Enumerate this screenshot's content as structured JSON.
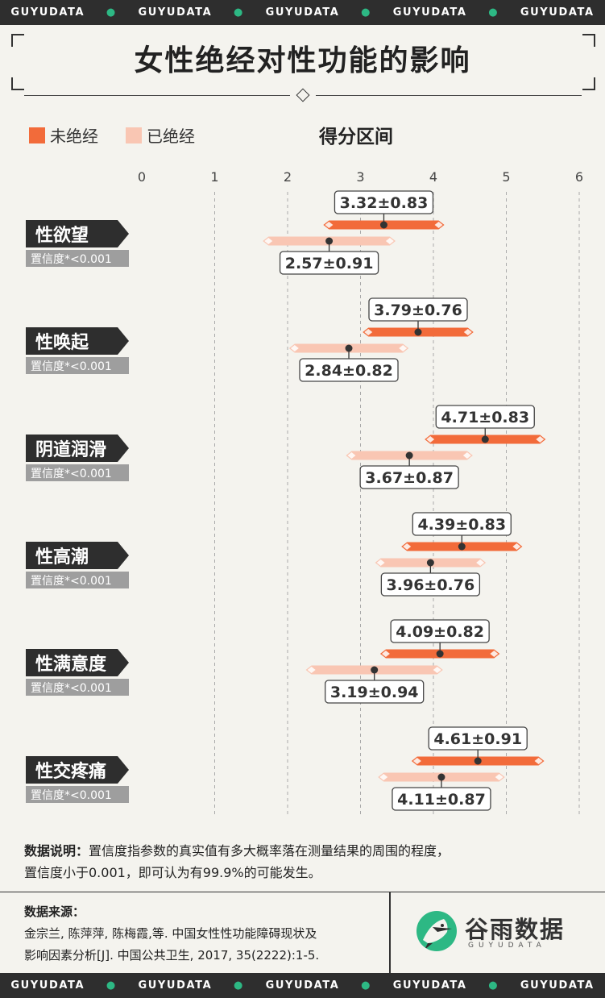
{
  "banner": [
    "GUYUDATA",
    "GUYUDATA",
    "GUYUDATA",
    "GUYUDATA",
    "GUYUDATA"
  ],
  "title": "女性绝经对性功能的影响",
  "legend": {
    "pre": "未绝经",
    "post": "已绝经"
  },
  "chart_header": "得分区间",
  "colors": {
    "pre": "#f26b3a",
    "post": "#f9c6b3",
    "accent": "#2db884",
    "dark": "#2e2e2e",
    "tag": "#9e9e9e"
  },
  "chart_data": {
    "type": "interval",
    "xticks": [
      0,
      1,
      2,
      3,
      4,
      5,
      6
    ],
    "xlim": [
      0,
      6
    ],
    "series": [
      {
        "name": "未绝经",
        "color": "#f26b3a"
      },
      {
        "name": "已绝经",
        "color": "#f9c6b3"
      }
    ],
    "categories": [
      {
        "name": "性欲望",
        "conf": "置信度*<0.001",
        "pre": {
          "mean": 3.32,
          "sd": 0.83,
          "label": "3.32±0.83"
        },
        "post": {
          "mean": 2.57,
          "sd": 0.91,
          "label": "2.57±0.91"
        }
      },
      {
        "name": "性唤起",
        "conf": "置信度*<0.001",
        "pre": {
          "mean": 3.79,
          "sd": 0.76,
          "label": "3.79±0.76"
        },
        "post": {
          "mean": 2.84,
          "sd": 0.82,
          "label": "2.84±0.82"
        }
      },
      {
        "name": "阴道润滑",
        "conf": "置信度*<0.001",
        "pre": {
          "mean": 4.71,
          "sd": 0.83,
          "label": "4.71±0.83"
        },
        "post": {
          "mean": 3.67,
          "sd": 0.87,
          "label": "3.67±0.87"
        }
      },
      {
        "name": "性高潮",
        "conf": "置信度*<0.001",
        "pre": {
          "mean": 4.39,
          "sd": 0.83,
          "label": "4.39±0.83"
        },
        "post": {
          "mean": 3.96,
          "sd": 0.76,
          "label": "3.96±0.76"
        }
      },
      {
        "name": "性满意度",
        "conf": "置信度*<0.001",
        "pre": {
          "mean": 4.09,
          "sd": 0.82,
          "label": "4.09±0.82"
        },
        "post": {
          "mean": 3.19,
          "sd": 0.94,
          "label": "3.19±0.94"
        }
      },
      {
        "name": "性交疼痛",
        "conf": "置信度*<0.001",
        "pre": {
          "mean": 4.61,
          "sd": 0.91,
          "label": "4.61±0.91"
        },
        "post": {
          "mean": 4.11,
          "sd": 0.87,
          "label": "4.11±0.87"
        }
      }
    ]
  },
  "note": {
    "label": "数据说明：",
    "line1": "置信度指参数的真实值有多大概率落在测量结果的周围的程度，",
    "line2": "置信度小于0.001，即可认为有99.9%的可能发生。"
  },
  "source": {
    "label": "数据来源：",
    "line1": "金宗兰, 陈萍萍, 陈梅霞,等. 中国女性性功能障碍现状及",
    "line2": "影响因素分析[J]. 中国公共卫生, 2017, 35(2222):1-5."
  },
  "logo": {
    "brand": "谷雨数据",
    "sub": "GUYUDATA"
  }
}
